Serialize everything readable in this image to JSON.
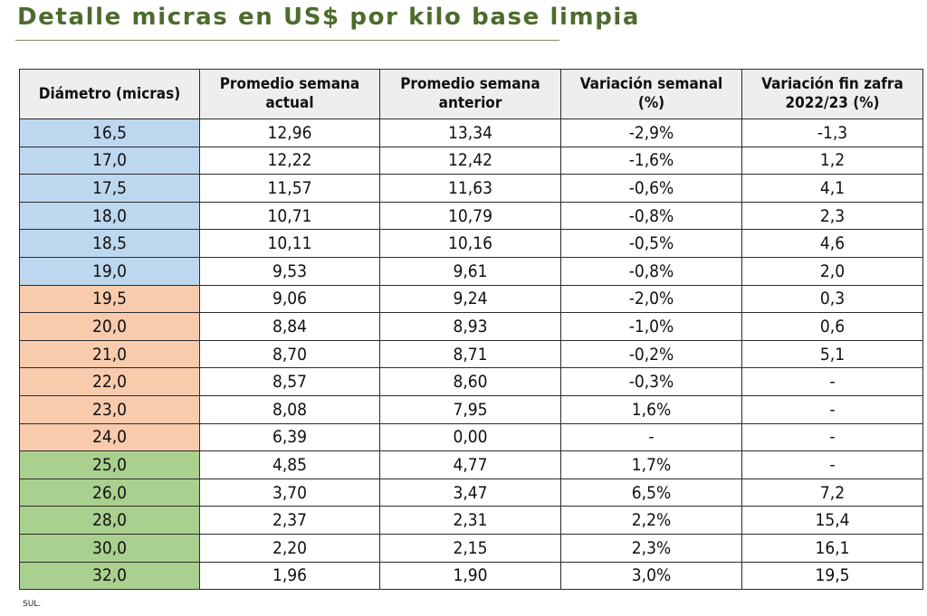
{
  "title": "Detalle micras en US$ por kilo base limpia",
  "table": {
    "headers": [
      [
        "Diámetro (micras)"
      ],
      [
        "Promedio semana",
        "actual"
      ],
      [
        "Promedio semana",
        "anterior"
      ],
      [
        "Variación semanal",
        "(%)"
      ],
      [
        "Variación fin zafra",
        "2022/23 (%)"
      ]
    ],
    "group_colors": {
      "blue": "#bdd7ee",
      "orange": "#f8cbad",
      "green": "#a9d08e"
    },
    "rows": [
      {
        "group": "blue",
        "cells": [
          "16,5",
          "12,96",
          "13,34",
          "-2,9%",
          "-1,3"
        ]
      },
      {
        "group": "blue",
        "cells": [
          "17,0",
          "12,22",
          "12,42",
          "-1,6%",
          "1,2"
        ]
      },
      {
        "group": "blue",
        "cells": [
          "17,5",
          "11,57",
          "11,63",
          "-0,6%",
          "4,1"
        ]
      },
      {
        "group": "blue",
        "cells": [
          "18,0",
          "10,71",
          "10,79",
          "-0,8%",
          "2,3"
        ]
      },
      {
        "group": "blue",
        "cells": [
          "18,5",
          "10,11",
          "10,16",
          "-0,5%",
          "4,6"
        ]
      },
      {
        "group": "blue",
        "cells": [
          "19,0",
          "9,53",
          "9,61",
          "-0,8%",
          "2,0"
        ]
      },
      {
        "group": "orange",
        "cells": [
          "19,5",
          "9,06",
          "9,24",
          "-2,0%",
          "0,3"
        ]
      },
      {
        "group": "orange",
        "cells": [
          "20,0",
          "8,84",
          "8,93",
          "-1,0%",
          "0,6"
        ]
      },
      {
        "group": "orange",
        "cells": [
          "21,0",
          "8,70",
          "8,71",
          "-0,2%",
          "5,1"
        ]
      },
      {
        "group": "orange",
        "cells": [
          "22,0",
          "8,57",
          "8,60",
          "-0,3%",
          "-"
        ]
      },
      {
        "group": "orange",
        "cells": [
          "23,0",
          "8,08",
          "7,95",
          "1,6%",
          "-"
        ]
      },
      {
        "group": "orange",
        "cells": [
          "24,0",
          "6,39",
          "0,00",
          "-",
          "-"
        ]
      },
      {
        "group": "green",
        "cells": [
          "25,0",
          "4,85",
          "4,77",
          "1,7%",
          "-"
        ]
      },
      {
        "group": "green",
        "cells": [
          "26,0",
          "3,70",
          "3,47",
          "6,5%",
          "7,2"
        ]
      },
      {
        "group": "green",
        "cells": [
          "28,0",
          "2,37",
          "2,31",
          "2,2%",
          "15,4"
        ]
      },
      {
        "group": "green",
        "cells": [
          "30,0",
          "2,20",
          "2,15",
          "2,3%",
          "16,1"
        ]
      },
      {
        "group": "green",
        "cells": [
          "32,0",
          "1,96",
          "1,90",
          "3,0%",
          "19,5"
        ]
      }
    ]
  },
  "source": "SUL."
}
